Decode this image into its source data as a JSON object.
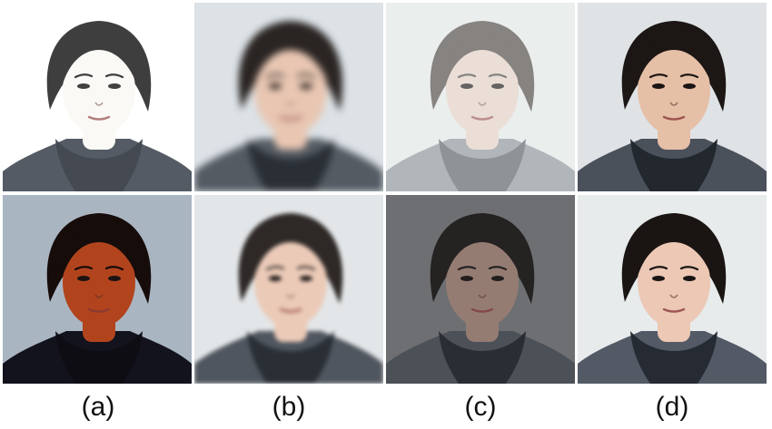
{
  "panel_labels": [
    "(a)",
    "(b)",
    "(c)",
    "(d)"
  ],
  "panels": [
    {
      "row": 0,
      "col": 0,
      "variant": "overexposed",
      "bg": "#ffffff",
      "skin": "#fbf8f3",
      "hair": "#141414",
      "jacket": "#2f3744",
      "hood": "#1c222c"
    },
    {
      "row": 0,
      "col": 1,
      "variant": "motion-blur",
      "bg": "#dce2e6",
      "skin": "#e8c6b2",
      "hair": "#2a2523",
      "jacket": "#555b63",
      "hood": "#2a2f36"
    },
    {
      "row": 0,
      "col": 2,
      "variant": "low-contrast-haze",
      "bg": "#e6ebea",
      "skin": "#e7d3c6",
      "hair": "#4e4744",
      "jacket": "#8f959c",
      "hood": "#5b6068"
    },
    {
      "row": 0,
      "col": 3,
      "variant": "restored",
      "bg": "#dfe3e6",
      "skin": "#e6bfa7",
      "hair": "#1c1715",
      "jacket": "#4b515b",
      "hood": "#23282f"
    },
    {
      "row": 1,
      "col": 0,
      "variant": "underexposed-warm",
      "bg": "#b7c8d7",
      "skin": "#c04a20",
      "hair": "#120c0a",
      "jacket": "#0f1320",
      "hood": "#0a0d16"
    },
    {
      "row": 1,
      "col": 1,
      "variant": "gaussian-blur",
      "bg": "#e3e6e8",
      "skin": "#ebcab7",
      "hair": "#2e2927",
      "jacket": "#50565f",
      "hood": "#2a2f36"
    },
    {
      "row": 1,
      "col": 2,
      "variant": "dark-gray",
      "bg": "#76787b",
      "skin": "#a7887c",
      "hair": "#1e1a19",
      "jacket": "#4d5259",
      "hood": "#24282e"
    },
    {
      "row": 1,
      "col": 3,
      "variant": "restored",
      "bg": "#e7ebec",
      "skin": "#ecc8b5",
      "hair": "#1a1513",
      "jacket": "#535a66",
      "hood": "#262b33"
    }
  ]
}
